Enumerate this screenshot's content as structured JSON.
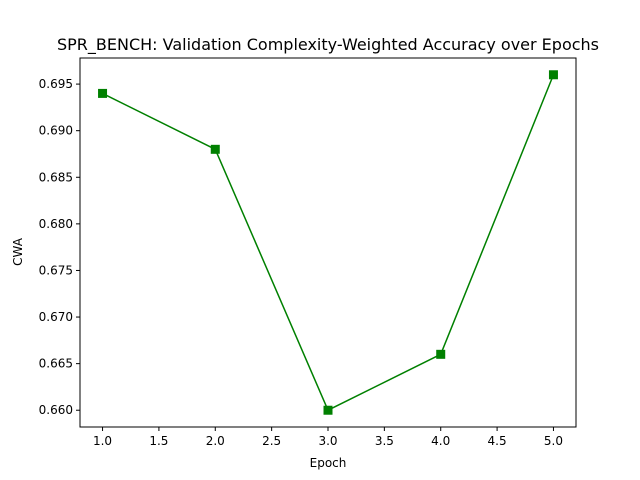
{
  "chart_data": {
    "type": "line",
    "title": "SPR_BENCH: Validation Complexity-Weighted Accuracy over Epochs",
    "xlabel": "Epoch",
    "ylabel": "CWA",
    "x": [
      1,
      2,
      3,
      4,
      5
    ],
    "series": [
      {
        "values": [
          0.694,
          0.688,
          0.66,
          0.666,
          0.696
        ],
        "color": "#008000",
        "marker": "square"
      }
    ],
    "xlim": [
      0.8,
      5.2
    ],
    "ylim": [
      0.6582,
      0.6978
    ],
    "x_ticks": [
      1.0,
      1.5,
      2.0,
      2.5,
      3.0,
      3.5,
      4.0,
      4.5,
      5.0
    ],
    "x_tick_labels": [
      "1.0",
      "1.5",
      "2.0",
      "2.5",
      "3.0",
      "3.5",
      "4.0",
      "4.5",
      "5.0"
    ],
    "y_ticks": [
      0.66,
      0.665,
      0.67,
      0.675,
      0.68,
      0.685,
      0.69,
      0.695
    ],
    "y_tick_labels": [
      "0.660",
      "0.665",
      "0.670",
      "0.675",
      "0.680",
      "0.685",
      "0.690",
      "0.695"
    ],
    "grid": false,
    "legend": "none"
  }
}
